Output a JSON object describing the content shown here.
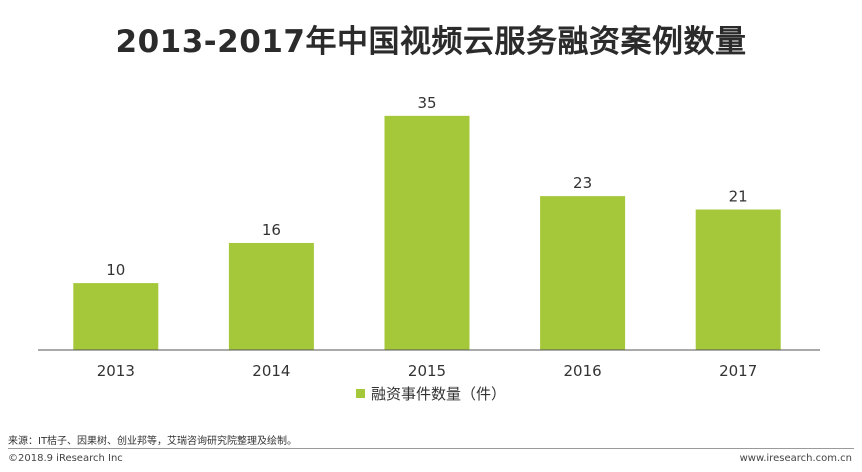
{
  "title": "2013-2017年中国视频云服务融资案例数量",
  "chart_data": {
    "type": "bar",
    "categories": [
      "2013",
      "2014",
      "2015",
      "2016",
      "2017"
    ],
    "series": [
      {
        "name": "融资事件数量（件）",
        "values": [
          10,
          16,
          35,
          23,
          21
        ]
      }
    ],
    "data_labels": true,
    "ylim": [
      0,
      38
    ],
    "grid": false,
    "legend_position": "bottom",
    "color": "#a5c73a"
  },
  "legend": {
    "label": "融资事件数量（件）"
  },
  "footer": {
    "source": "来源：IT桔子、因果树、创业邦等，艾瑞咨询研究院整理及绘制。",
    "copyright": "©2018.9 iResearch Inc",
    "website": "www.iresearch.com.cn"
  }
}
